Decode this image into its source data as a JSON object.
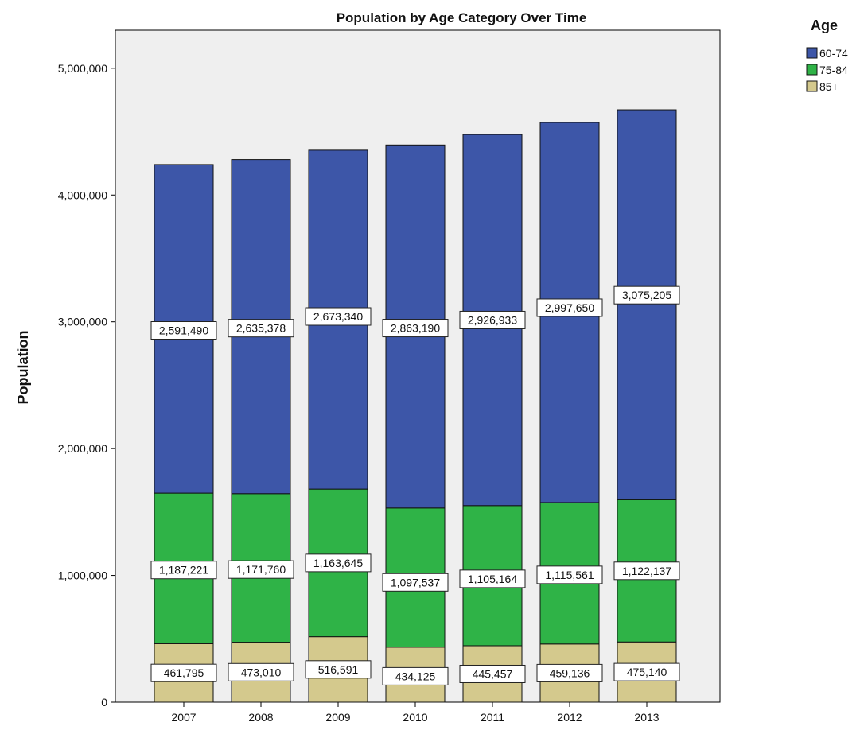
{
  "chart_data": {
    "type": "bar",
    "stacked": true,
    "title": "Population by Age Category Over Time",
    "ylabel": "Population",
    "xlabel": "",
    "categories": [
      "2007",
      "2008",
      "2009",
      "2010",
      "2011",
      "2012",
      "2013"
    ],
    "ylim": [
      0,
      5300000
    ],
    "yticks": [
      0,
      1000000,
      2000000,
      3000000,
      4000000,
      5000000
    ],
    "ytick_labels": [
      "0",
      "1,000,000",
      "2,000,000",
      "3,000,000",
      "4,000,000",
      "5,000,000"
    ],
    "grid": false,
    "legend": {
      "title": "Age",
      "position": "top-right"
    },
    "series": [
      {
        "name": "85+",
        "color": "#d4c98d",
        "values": [
          461795,
          473010,
          516591,
          434125,
          445457,
          459136,
          475140
        ],
        "labels": [
          "461,795",
          "473,010",
          "516,591",
          "434,125",
          "445,457",
          "459,136",
          "475,140"
        ]
      },
      {
        "name": "75-84",
        "color": "#2fb347",
        "values": [
          1187221,
          1171760,
          1163645,
          1097537,
          1105164,
          1115561,
          1122137
        ],
        "labels": [
          "1,187,221",
          "1,171,760",
          "1,163,645",
          "1,097,537",
          "1,105,164",
          "1,115,561",
          "1,122,137"
        ]
      },
      {
        "name": "60-74",
        "color": "#3d56a8",
        "values": [
          2591490,
          2635378,
          2673340,
          2863190,
          2926933,
          2997650,
          3075205
        ],
        "labels": [
          "2,591,490",
          "2,635,378",
          "2,673,340",
          "2,863,190",
          "2,926,933",
          "2,997,650",
          "3,075,205"
        ]
      }
    ],
    "legend_order": [
      "60-74",
      "75-84",
      "85+"
    ],
    "colors": {
      "plot_background": "#efefef",
      "axis": "#000000",
      "label_box": "#ffffff"
    }
  }
}
